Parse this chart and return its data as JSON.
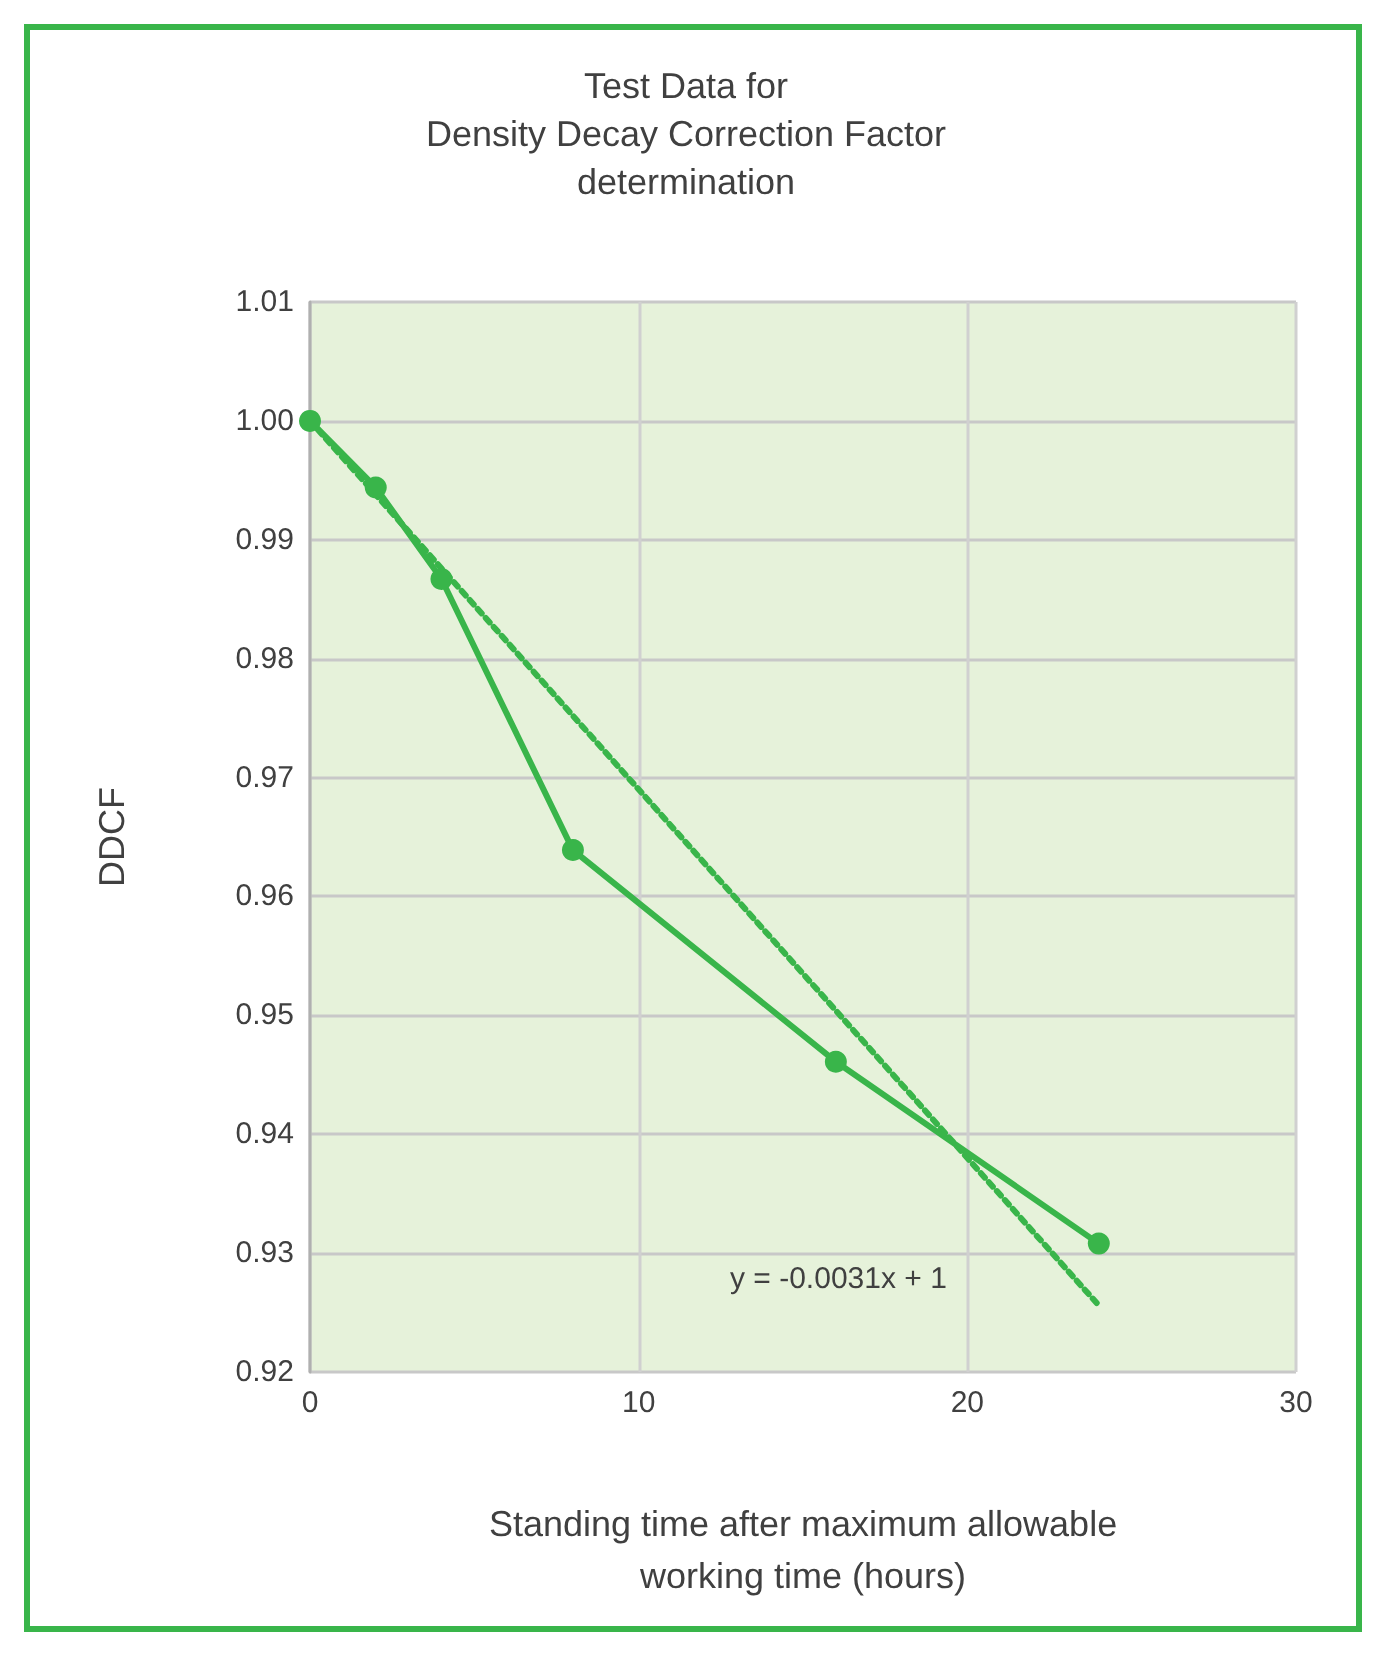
{
  "chart_data": {
    "type": "line",
    "title": "Test Data for\nDensity Decay Correction Factor\ndetermination",
    "xlabel": "Standing time after maximum allowable\nworking time (hours)",
    "ylabel": "DDCF",
    "series": [
      {
        "type": "line",
        "color": "#39b54a",
        "x": [
          0,
          2,
          4,
          8,
          16,
          24
        ],
        "values": [
          1.0,
          0.9944,
          0.9867,
          0.9639,
          0.9461,
          0.9308
        ],
        "marker": "circle",
        "line_style": "solid"
      },
      {
        "type": "line",
        "color": "#39b54a",
        "x": [
          0,
          24
        ],
        "values": [
          1.0,
          0.9256
        ],
        "marker": "none",
        "line_style": "dotted"
      }
    ],
    "annotations": [
      "y = -0.0031x + 1"
    ],
    "xlim": [
      0,
      30
    ],
    "xticks": [
      0,
      10,
      20,
      30
    ],
    "ylim": [
      0.92,
      1.01
    ],
    "yticks": [
      0.92,
      0.93,
      0.94,
      0.95,
      0.96,
      0.97,
      0.98,
      0.99,
      {
        "value": 1.0,
        "label": "1.00"
      },
      1.01
    ],
    "grid": true
  }
}
